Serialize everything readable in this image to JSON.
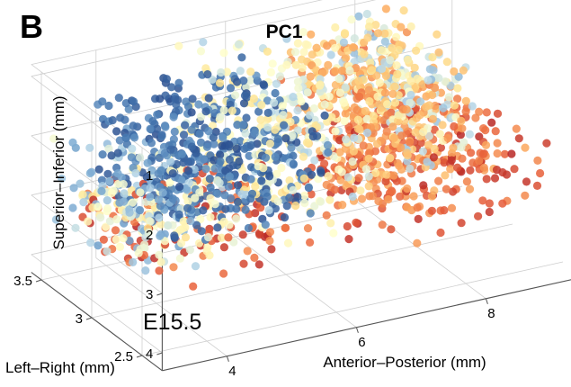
{
  "panel_label": "B",
  "chart_data": {
    "type": "scatter",
    "dimensions": "3d",
    "title": "PC1",
    "annotation": "E15.5",
    "xlabel": "Anterior–Posterior (mm)",
    "ylabel": "Left–Right (mm)",
    "zlabel": "Superior–Inferior (mm)",
    "x_ticks": [
      4,
      6,
      8
    ],
    "y_ticks": [
      2.5,
      3,
      3.5
    ],
    "z_ticks": [
      1,
      2,
      3,
      4
    ],
    "xlim": [
      3,
      9.5
    ],
    "ylim": [
      2.3,
      3.6
    ],
    "zlim": [
      0.8,
      4.3
    ],
    "z_reversed": true,
    "grid": true,
    "legend": false,
    "colormap": [
      "#2b4f8f",
      "#4577b0",
      "#76a6cf",
      "#b9d8e8",
      "#ffffcc",
      "#fee391",
      "#fdae61",
      "#e8603a",
      "#b62424"
    ],
    "color_variable": "PC1 score",
    "regions": [
      {
        "x": [
          3.0,
          4.4
        ],
        "z": [
          1.8,
          3.2
        ],
        "pc1": [
          -0.55,
          0.1
        ]
      },
      {
        "x": [
          3.6,
          6.0
        ],
        "z": [
          1.1,
          2.8
        ],
        "pc1": [
          -1.0,
          -0.6
        ]
      },
      {
        "x": [
          5.0,
          6.8
        ],
        "z": [
          0.75,
          2.6
        ],
        "pc1": [
          -0.3,
          0.25
        ]
      },
      {
        "x": [
          6.8,
          8.3
        ],
        "z": [
          0.7,
          2.1
        ],
        "pc1": [
          0.05,
          0.6
        ]
      },
      {
        "x": [
          7.2,
          8.3
        ],
        "z": [
          0.9,
          2.4
        ],
        "pc1": [
          -0.4,
          0.0
        ]
      },
      {
        "x": [
          6.6,
          8.0
        ],
        "z": [
          1.2,
          2.9
        ],
        "pc1": [
          0.3,
          0.75
        ]
      },
      {
        "x": [
          3.3,
          6.0
        ],
        "z": [
          2.7,
          3.5
        ],
        "pc1": [
          0.6,
          1.0
        ]
      },
      {
        "x": [
          6.6,
          9.4
        ],
        "z": [
          2.3,
          3.6
        ],
        "pc1": [
          0.5,
          1.0
        ]
      },
      {
        "x": [
          3.3,
          6.3
        ],
        "z": [
          2.5,
          3.1
        ],
        "pc1": [
          -0.1,
          0.3
        ]
      }
    ],
    "region_weights": [
      160,
      420,
      240,
      200,
      140,
      190,
      120,
      260,
      120
    ]
  }
}
